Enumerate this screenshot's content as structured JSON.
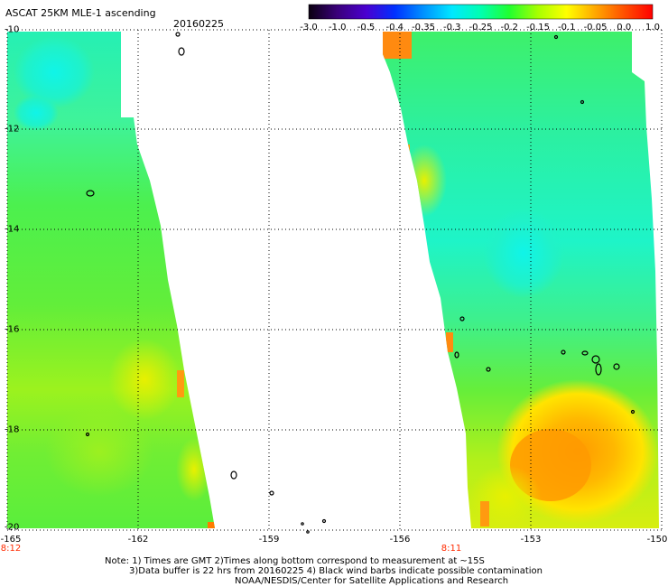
{
  "header": {
    "title": "ASCAT 25KM MLE-1 ascending",
    "date": "20160225"
  },
  "colorbar": {
    "labels": [
      "-3.0",
      "-1.0",
      "-0.5",
      "-0.4",
      "-0.35",
      "-0.3",
      "-0.25",
      "-0.2",
      "-0.15",
      "-0.1",
      "-0.05",
      "0.0",
      "1.0"
    ],
    "colors": [
      "#0a0010",
      "#3a007a",
      "#4a00d0",
      "#0030ff",
      "#0090ff",
      "#00e8ff",
      "#00ffb0",
      "#20ff30",
      "#a8ff00",
      "#ffff00",
      "#ffa800",
      "#ff5000",
      "#ff0000"
    ]
  },
  "axes": {
    "lat_labels": [
      "-10",
      "-12",
      "-14",
      "-16",
      "-18",
      "-20"
    ],
    "lon_labels": [
      "-165",
      "-162",
      "-159",
      "-156",
      "-153",
      "-150"
    ]
  },
  "pass_times": [
    {
      "label": "8:12",
      "lon": -165
    },
    {
      "label": "8:11",
      "lon": -155.7
    }
  ],
  "notes": [
    "Note: 1) Times are GMT 2)Times along bottom correspond to measurement at ~15S",
    "3)Data buffer is 22 hrs from 20160225 4) Black wind barbs indicate possible contamination",
    "NOAA/NESDIS/Center for Satellite Applications and Research"
  ]
}
